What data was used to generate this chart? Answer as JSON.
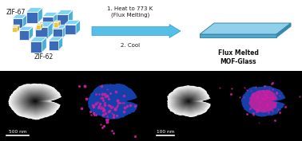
{
  "bg_color": "#ffffff",
  "step1_text": "1. Heat to 773 K\n(Flux Melting)",
  "step2_text": "2. Cool",
  "label_zif67": "ZIF-67",
  "label_zif62": "ZIF-62",
  "label_product": "Flux Melted\nMOF-Glass",
  "scale_bar_left": "500 nm",
  "scale_bar_right": "100 nm",
  "arrow_color": "#55bfe8",
  "arrow_edge": "#2a9fd4",
  "cube_blue_face": "#3a6ab8",
  "cube_cyan_top": "#82d4f0",
  "cube_cyan_side": "#4ab0d8",
  "cube_yellow_face": "#e8c840",
  "cube_yellow_top": "#f0dc80",
  "cube_yellow_side": "#c8a020",
  "glass_main": "#90d0ea",
  "glass_light": "#bce8f8",
  "glass_dark": "#50a8cc",
  "glass_edge": "#3888aa",
  "text_color": "#1a1a1a",
  "label_bold_color": "#111111",
  "panel_bg": "#000000",
  "sem_white": "#e8e8e8",
  "eds_blue": "#1848c0",
  "eds_pink": "#d020a0"
}
